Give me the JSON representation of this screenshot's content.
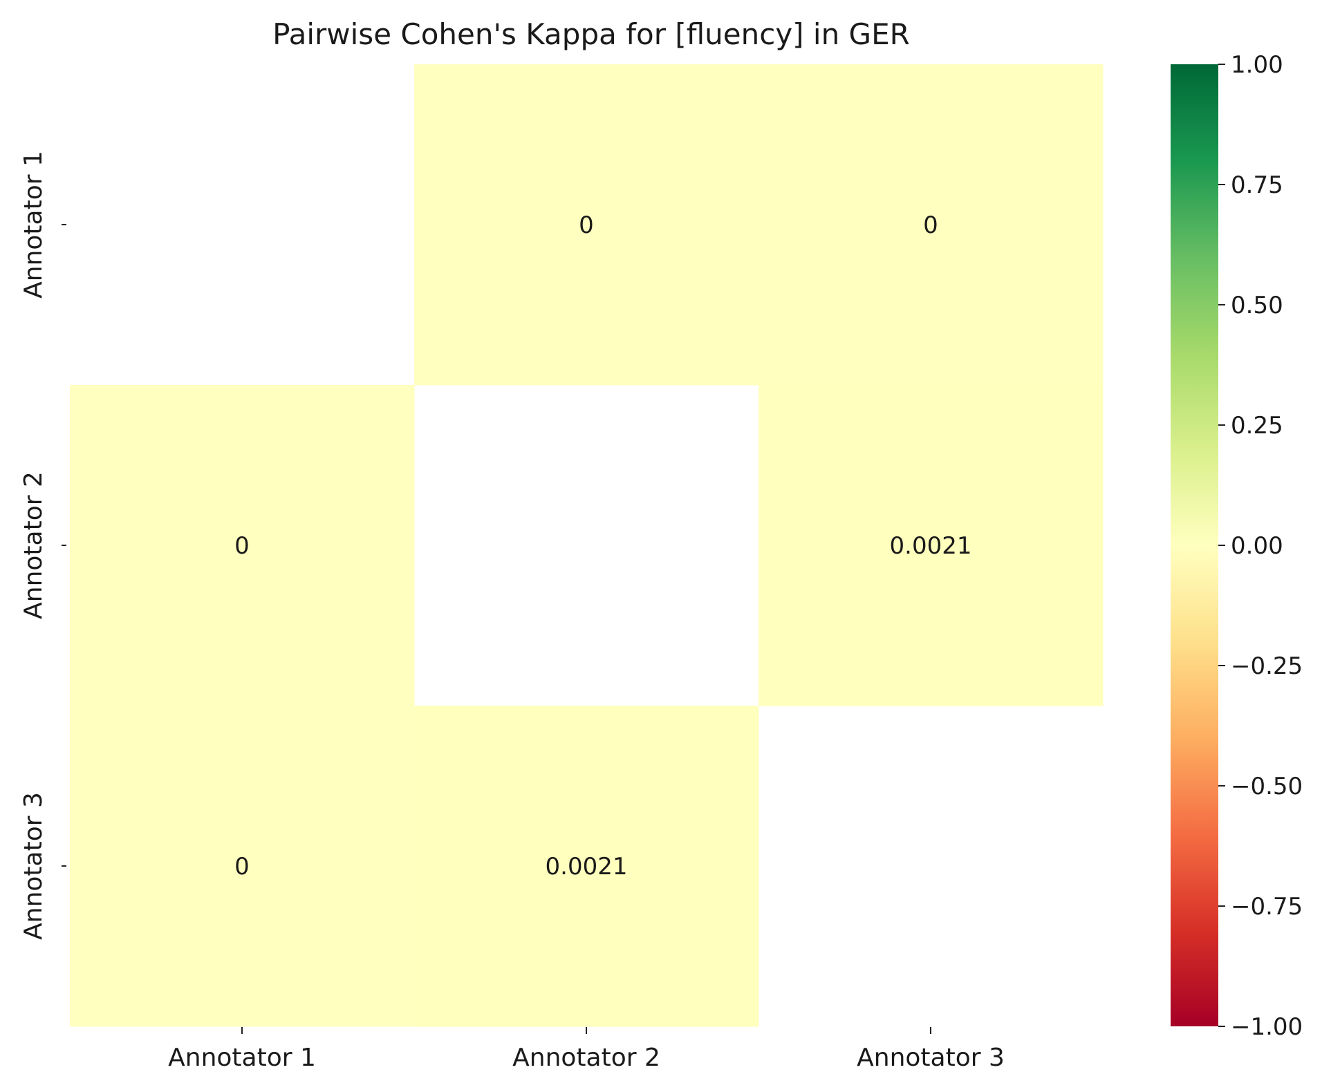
{
  "chart_data": {
    "type": "heatmap",
    "title": "Pairwise Cohen's Kappa for [fluency] in GER",
    "x_labels": [
      "Annotator 1",
      "Annotator 2",
      "Annotator 3"
    ],
    "y_labels": [
      "Annotator 1",
      "Annotator 2",
      "Annotator 3"
    ],
    "values": [
      [
        null,
        0,
        0
      ],
      [
        0,
        null,
        0.0021
      ],
      [
        0,
        0.0021,
        null
      ]
    ],
    "annotations": [
      [
        "",
        "0",
        "0"
      ],
      [
        "0",
        "",
        "0.0021"
      ],
      [
        "0",
        "0.0021",
        ""
      ]
    ],
    "colormap": "RdYlGn",
    "vmin": -1.0,
    "vmax": 1.0,
    "colorbar_ticks": [
      1.0,
      0.75,
      0.5,
      0.25,
      0.0,
      -0.25,
      -0.5,
      -0.75,
      -1.0
    ],
    "colorbar_tick_labels": [
      "1.00",
      "0.75",
      "0.50",
      "0.25",
      "0.00",
      "−0.25",
      "−0.50",
      "−0.75",
      "−1.00"
    ],
    "colors": {
      "low": "#a50026",
      "mid": "#ffffbf",
      "high": "#006837"
    }
  }
}
